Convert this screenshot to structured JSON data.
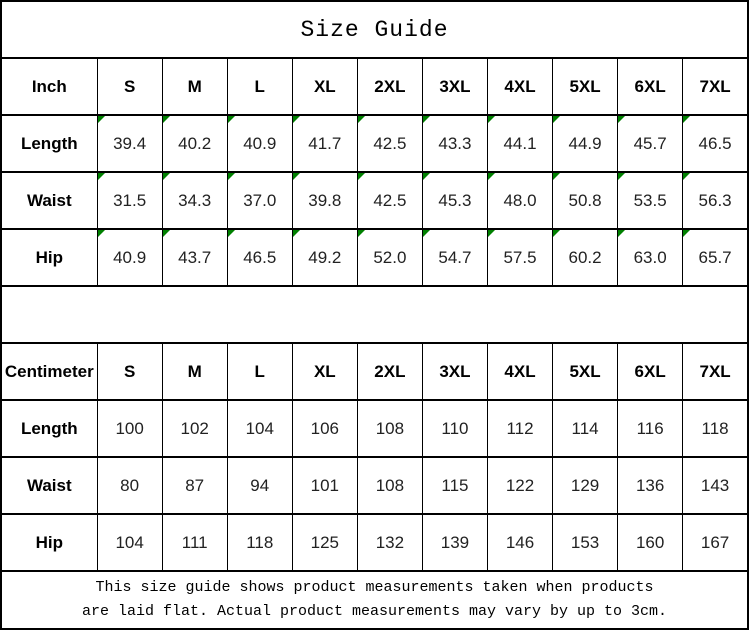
{
  "title": "Size Guide",
  "colors": {
    "flag_green": "#008000",
    "border": "#000000"
  },
  "chart_data": [
    {
      "type": "table",
      "unit": "Inch",
      "columns": [
        "Inch",
        "S",
        "M",
        "L",
        "XL",
        "2XL",
        "3XL",
        "4XL",
        "5XL",
        "6XL",
        "7XL"
      ],
      "rows": [
        {
          "label": "Length",
          "values": [
            "39.4",
            "40.2",
            "40.9",
            "41.7",
            "42.5",
            "43.3",
            "44.1",
            "44.9",
            "45.7",
            "46.5"
          ]
        },
        {
          "label": "Waist",
          "values": [
            "31.5",
            "34.3",
            "37.0",
            "39.8",
            "42.5",
            "45.3",
            "48.0",
            "50.8",
            "53.5",
            "56.3"
          ]
        },
        {
          "label": "Hip",
          "values": [
            "40.9",
            "43.7",
            "46.5",
            "49.2",
            "52.0",
            "54.7",
            "57.5",
            "60.2",
            "63.0",
            "65.7"
          ]
        }
      ]
    },
    {
      "type": "table",
      "unit": "Centimeter",
      "columns": [
        "Centimeter",
        "S",
        "M",
        "L",
        "XL",
        "2XL",
        "3XL",
        "4XL",
        "5XL",
        "6XL",
        "7XL"
      ],
      "rows": [
        {
          "label": "Length",
          "values": [
            "100",
            "102",
            "104",
            "106",
            "108",
            "110",
            "112",
            "114",
            "116",
            "118"
          ]
        },
        {
          "label": "Waist",
          "values": [
            "80",
            "87",
            "94",
            "101",
            "108",
            "115",
            "122",
            "129",
            "136",
            "143"
          ]
        },
        {
          "label": "Hip",
          "values": [
            "104",
            "111",
            "118",
            "125",
            "132",
            "139",
            "146",
            "153",
            "160",
            "167"
          ]
        }
      ]
    }
  ],
  "footer": {
    "line1": "This size guide shows product measurements taken when products",
    "line2": "are laid flat. Actual product measurements may vary by up to 3cm."
  }
}
